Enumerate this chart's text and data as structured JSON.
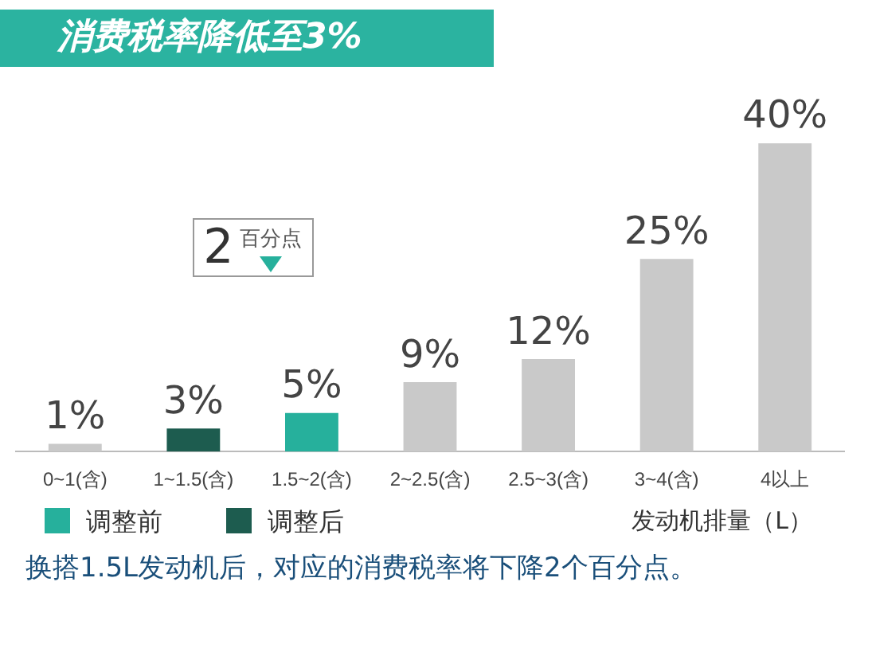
{
  "chart_data": {
    "type": "bar",
    "title": "消费税率降低至3%",
    "xlabel": "发动机排量（L）",
    "categories": [
      "0~1(含)",
      "1~1.5(含)",
      "1.5~2(含)",
      "2~2.5(含)",
      "2.5~3(含)",
      "3~4(含)",
      "4以上"
    ],
    "series": [
      {
        "color": "#c9c9c9",
        "values": [
          1,
          null,
          null,
          9,
          12,
          25,
          40
        ],
        "value_labels": [
          "1%",
          null,
          null,
          "9%",
          "12%",
          "25%",
          "40%"
        ]
      },
      {
        "name": "调整前",
        "color": "#26b09c",
        "values": [
          null,
          null,
          5,
          null,
          null,
          null,
          null
        ],
        "value_labels": [
          null,
          null,
          "5%",
          null,
          null,
          null,
          null
        ]
      },
      {
        "name": "调整后",
        "color": "#1d5c4f",
        "values": [
          null,
          3,
          null,
          null,
          null,
          null,
          null
        ],
        "value_labels": [
          null,
          "3%",
          null,
          null,
          null,
          null,
          null
        ]
      }
    ],
    "grid": false,
    "legend": "bottom left",
    "tick_labels": "x",
    "annotations": [
      "2百分点",
      "换搭1.5L发动机后，对应的消费税率将下降2个百分点。"
    ]
  }
}
